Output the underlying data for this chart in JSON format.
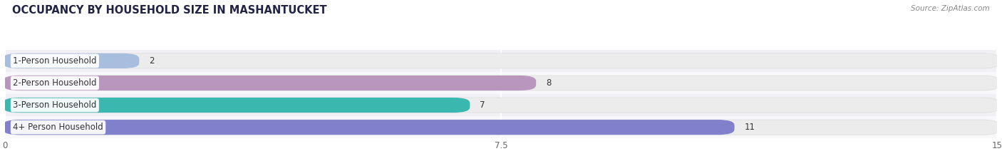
{
  "title": "OCCUPANCY BY HOUSEHOLD SIZE IN MASHANTUCKET",
  "source": "Source: ZipAtlas.com",
  "categories": [
    "1-Person Household",
    "2-Person Household",
    "3-Person Household",
    "4+ Person Household"
  ],
  "values": [
    2,
    8,
    7,
    11
  ],
  "bar_colors": [
    "#a8bede",
    "#b896be",
    "#3ab8b0",
    "#8080cc"
  ],
  "xlim": [
    0,
    15
  ],
  "xticks": [
    0,
    7.5,
    15
  ],
  "background_color": "#f5f5f8",
  "bar_bg_color": "#efefef",
  "row_bg_color": "#f9f9fb",
  "title_fontsize": 10.5,
  "label_fontsize": 8.5,
  "value_fontsize": 8.5,
  "bar_height": 0.62
}
